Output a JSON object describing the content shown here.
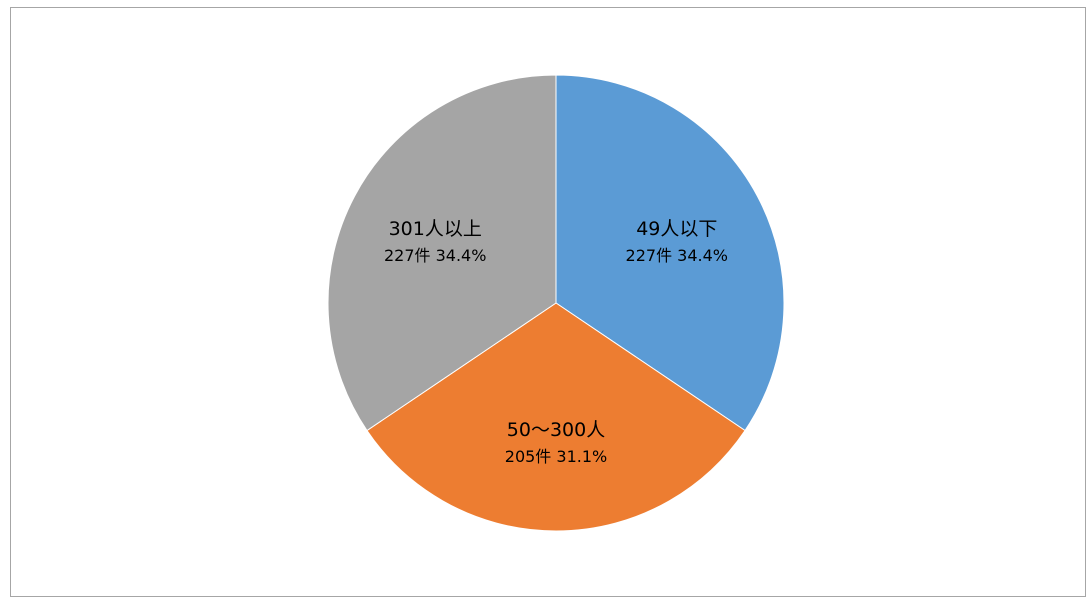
{
  "chart_data": {
    "type": "pie",
    "categories": [
      "49人以下",
      "50～300人",
      "301人以上"
    ],
    "values": [
      227,
      205,
      227
    ],
    "percentages": [
      34.4,
      31.1,
      34.4
    ],
    "value_labels": [
      "227件 34.4%",
      "205件 31.1%",
      "227件 34.4%"
    ],
    "colors": [
      "#5b9bd5",
      "#ed7d31",
      "#a5a5a5"
    ],
    "start_angle_deg": 0,
    "direction": "clockwise",
    "legend": "none"
  }
}
